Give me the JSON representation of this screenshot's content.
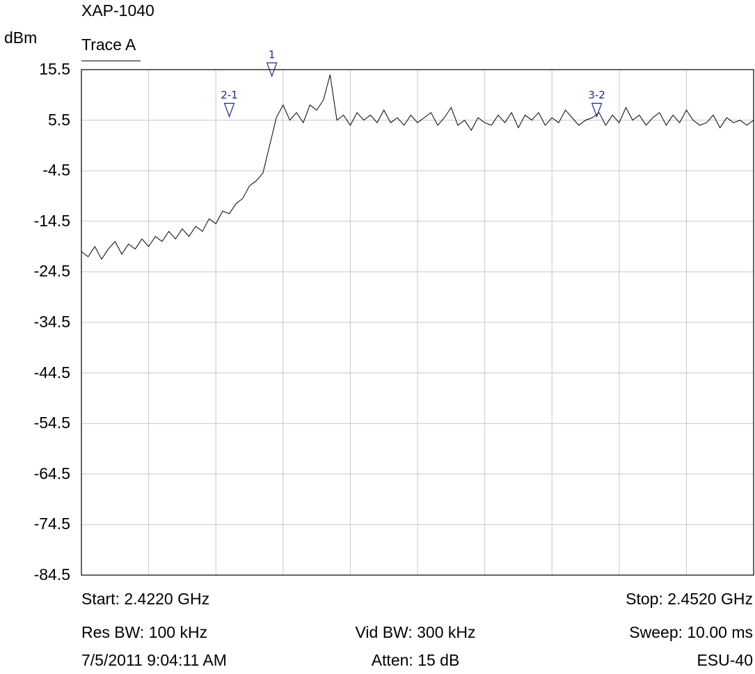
{
  "header": {
    "title": "XAP-1040",
    "unit": "dBm",
    "trace_label": "Trace A"
  },
  "chart_data": {
    "type": "line",
    "xlabel": "",
    "ylabel": "dBm",
    "xlim": [
      2.422,
      2.452
    ],
    "x_unit": "GHz",
    "ylim": [
      -84.5,
      15.5
    ],
    "y_ticks": [
      "15.5",
      "5.5",
      "-4.5",
      "-14.5",
      "-24.5",
      "-34.5",
      "-44.5",
      "-54.5",
      "-64.5",
      "-74.5",
      "-84.5"
    ],
    "grid": true,
    "series": [
      {
        "x": [
          2.422,
          2.4223,
          2.4226,
          2.4229,
          2.4232,
          2.4235,
          2.4238,
          2.4241,
          2.4244,
          2.4247,
          2.425,
          2.4253,
          2.4256,
          2.4259,
          2.4262,
          2.4265,
          2.4268,
          2.4271,
          2.4274,
          2.4277,
          2.428,
          2.4283,
          2.4286,
          2.4289,
          2.4292,
          2.4295,
          2.4298,
          2.4301,
          2.4304,
          2.4307,
          2.431,
          2.4313,
          2.4316,
          2.4319,
          2.4322,
          2.4325,
          2.4328,
          2.4331,
          2.4334,
          2.4337,
          2.434,
          2.4343,
          2.4346,
          2.4349,
          2.4352,
          2.4355,
          2.4358,
          2.4361,
          2.4364,
          2.4367,
          2.437,
          2.4373,
          2.4376,
          2.4379,
          2.4382,
          2.4385,
          2.4388,
          2.4391,
          2.4394,
          2.4397,
          2.44,
          2.4403,
          2.4406,
          2.4409,
          2.4412,
          2.4415,
          2.4418,
          2.4421,
          2.4424,
          2.4427,
          2.443,
          2.4433,
          2.4436,
          2.4439,
          2.4442,
          2.4445,
          2.4448,
          2.4451,
          2.4454,
          2.4457,
          2.446,
          2.4463,
          2.4466,
          2.4469,
          2.4472,
          2.4475,
          2.4478,
          2.4481,
          2.4484,
          2.4487,
          2.449,
          2.4493,
          2.4496,
          2.4499,
          2.4502,
          2.4505,
          2.4508,
          2.4511,
          2.4514,
          2.4517,
          2.452
        ],
        "y": [
          -20.5,
          -21.5,
          -19.5,
          -22.0,
          -20.0,
          -18.5,
          -21.0,
          -19.0,
          -20.0,
          -18.0,
          -19.5,
          -17.5,
          -18.5,
          -16.5,
          -18.0,
          -16.0,
          -17.5,
          -15.5,
          -16.5,
          -14.0,
          -15.0,
          -12.5,
          -13.0,
          -11.0,
          -10.0,
          -7.5,
          -6.5,
          -5.0,
          0.5,
          6.0,
          8.5,
          5.5,
          7.0,
          5.0,
          8.5,
          7.5,
          9.5,
          14.5,
          5.5,
          6.5,
          4.5,
          7.0,
          5.5,
          6.5,
          5.0,
          7.5,
          5.0,
          6.0,
          4.5,
          6.5,
          5.0,
          6.0,
          7.0,
          4.5,
          6.0,
          8.0,
          4.5,
          5.5,
          3.5,
          6.0,
          5.0,
          4.5,
          6.5,
          5.0,
          7.0,
          4.0,
          6.5,
          5.5,
          7.0,
          4.5,
          6.0,
          5.0,
          7.5,
          6.0,
          4.5,
          5.5,
          6.0,
          7.0,
          4.5,
          6.5,
          5.0,
          8.0,
          5.5,
          6.5,
          4.5,
          6.0,
          7.0,
          4.5,
          6.5,
          5.0,
          7.5,
          5.5,
          4.5,
          5.0,
          6.5,
          4.0,
          6.0,
          5.0,
          5.5,
          4.5,
          5.5
        ]
      }
    ],
    "markers": [
      {
        "label": "1",
        "x": 2.4305,
        "y": 14.5
      },
      {
        "label": "2-1",
        "x": 2.4286,
        "y": 6.5
      },
      {
        "label": "3-2",
        "x": 2.445,
        "y": 6.5
      }
    ]
  },
  "footer": {
    "start": "Start: 2.4220 GHz",
    "stop": "Stop: 2.4520 GHz",
    "res_bw": "Res BW: 100 kHz",
    "vid_bw": "Vid BW: 300 kHz",
    "sweep": "Sweep: 10.00 ms",
    "timestamp": "7/5/2011 9:04:11 AM",
    "atten": "Atten: 15 dB",
    "instrument": "ESU-40"
  }
}
